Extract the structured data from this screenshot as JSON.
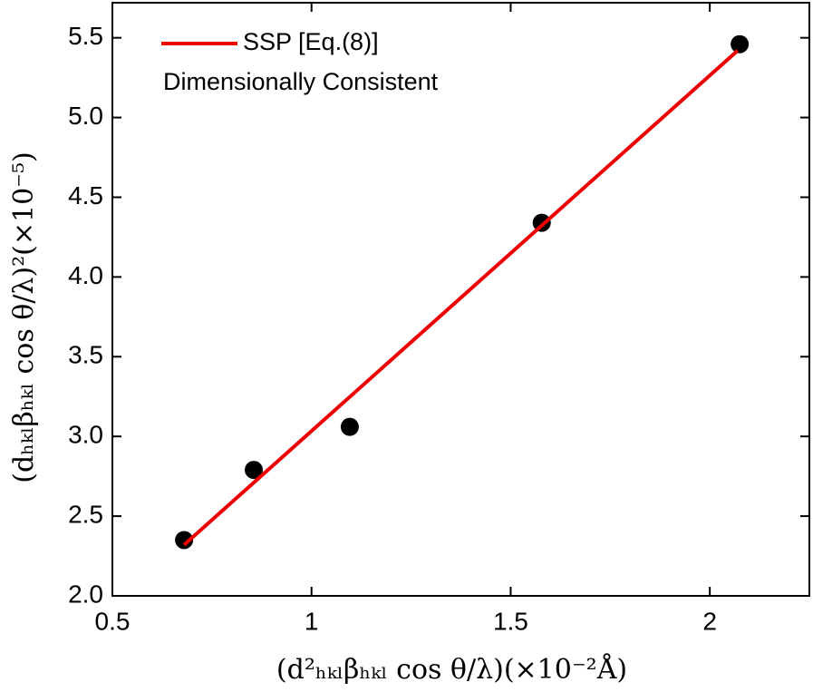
{
  "chart_data": {
    "type": "scatter",
    "x_label": "(d²ₕₖₗβₕₖₗ cos θ/λ)(×10⁻²Å)",
    "y_label": "(dₕₖₗβₕₖₗ cos θ/λ)²(×10⁻⁵)",
    "annotation": "Dimensionally Consistent",
    "xlim": [
      0.5,
      2.25
    ],
    "ylim": [
      2.0,
      5.72
    ],
    "xticks": [
      0.5,
      1.0,
      1.5,
      2.0
    ],
    "yticks": [
      {
        "value": 2.0,
        "label": "2.0"
      },
      2.5,
      {
        "value": 3.0,
        "label": "3.0"
      },
      3.5,
      {
        "value": 4.0,
        "label": "4.0"
      },
      4.5,
      {
        "value": 5.0,
        "label": "5.0"
      },
      5.5
    ],
    "legend": "upper left",
    "series": [
      {
        "mode": "markers",
        "color": "#000000",
        "x": [
          0.68,
          0.855,
          1.096,
          1.578,
          2.075
        ],
        "values": [
          2.35,
          2.79,
          3.06,
          4.34,
          5.46
        ]
      },
      {
        "name": "SSP [Eq.(8)]",
        "mode": "line",
        "color": "#ee0000",
        "x": [
          0.68,
          2.07
        ],
        "values": [
          2.32,
          5.42
        ]
      }
    ]
  }
}
